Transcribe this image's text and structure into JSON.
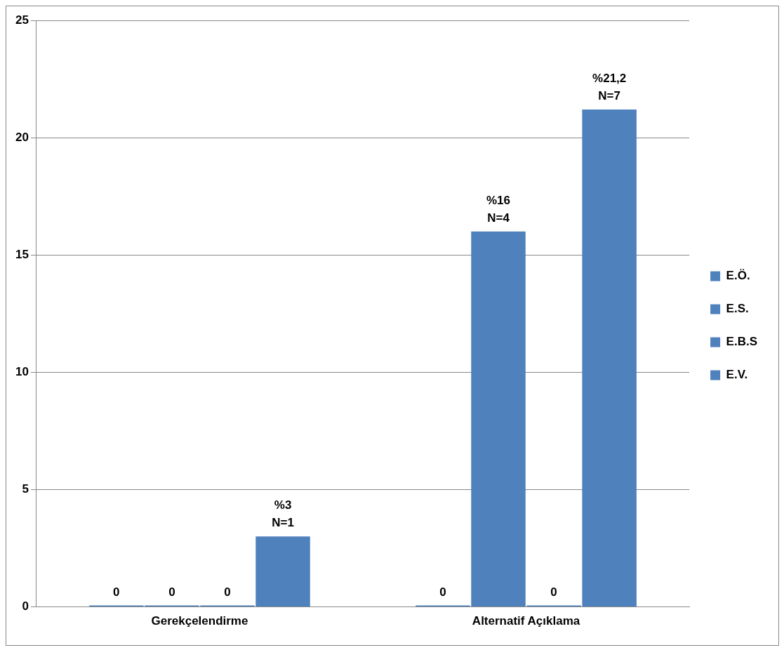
{
  "chart_data": {
    "type": "bar",
    "categories": [
      "Gerekçelendirme",
      "Alternatif Açıklama"
    ],
    "series": [
      {
        "name": "E.Ö.",
        "color": "#4f81bd",
        "values": [
          0,
          0
        ],
        "value_labels": [
          "0",
          "0"
        ]
      },
      {
        "name": "E.S.",
        "color": "#4f81bd",
        "values": [
          0,
          16
        ],
        "value_labels": [
          "0",
          "%16\nN=4"
        ]
      },
      {
        "name": "E.B.S",
        "color": "#4f81bd",
        "values": [
          0,
          0
        ],
        "value_labels": [
          "0",
          "0"
        ]
      },
      {
        "name": "E.V.",
        "color": "#4f81bd",
        "values": [
          3,
          21.2
        ],
        "value_labels": [
          "%3\nN=1",
          "%21,2\nN=7"
        ]
      }
    ],
    "ylim": [
      0,
      25
    ],
    "yticks": [
      0,
      5,
      10,
      15,
      20,
      25
    ],
    "grid": "y",
    "legend": "right"
  }
}
